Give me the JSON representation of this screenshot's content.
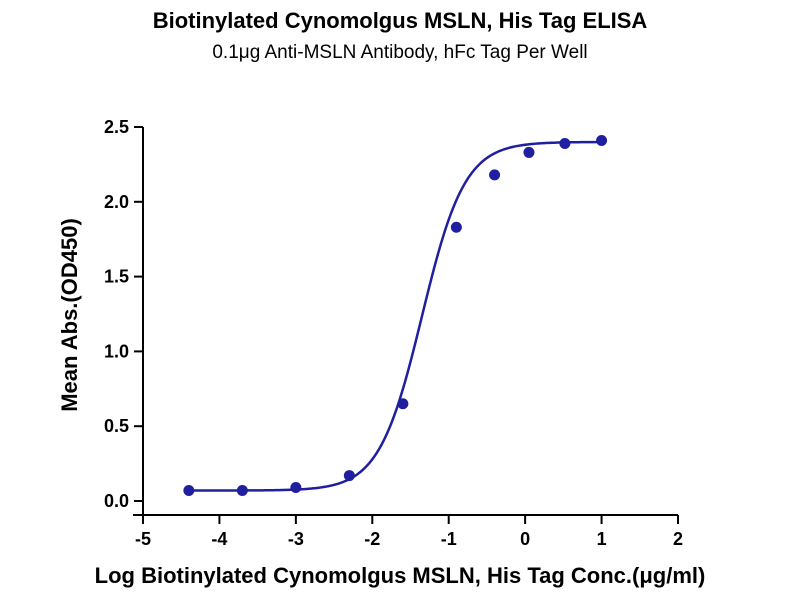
{
  "chart_data": {
    "type": "scatter",
    "title": "Biotinylated Cynomolgus MSLN, His Tag ELISA",
    "subtitle": "0.1μg Anti-MSLN Antibody, hFc Tag Per Well",
    "xlabel": "Log Biotinylated Cynomolgus MSLN, His Tag Conc.(μg/ml)",
    "ylabel": "Mean Abs.(OD450)",
    "xlim": [
      -5,
      2
    ],
    "ylim": [
      0,
      2.5
    ],
    "xticks": [
      "-5",
      "-4",
      "-3",
      "-2",
      "-1",
      "0",
      "1",
      "2"
    ],
    "yticks": [
      "0.0",
      "0.5",
      "1.0",
      "1.5",
      "2.0",
      "2.5"
    ],
    "grid": false,
    "color": "#1f1fa0",
    "series": [
      {
        "x": [
          -4.4,
          -3.7,
          -3.0,
          -2.3,
          -1.6,
          -0.9,
          -0.4,
          0.05,
          0.52,
          1.0
        ],
        "y": [
          0.07,
          0.07,
          0.09,
          0.17,
          0.65,
          1.83,
          2.18,
          2.33,
          2.39,
          2.41
        ],
        "fit": "four-parameter logistic",
        "fit_params": {
          "bottom": 0.07,
          "top": 2.4,
          "logEC50": -1.35,
          "hill": 1.55
        }
      }
    ]
  }
}
